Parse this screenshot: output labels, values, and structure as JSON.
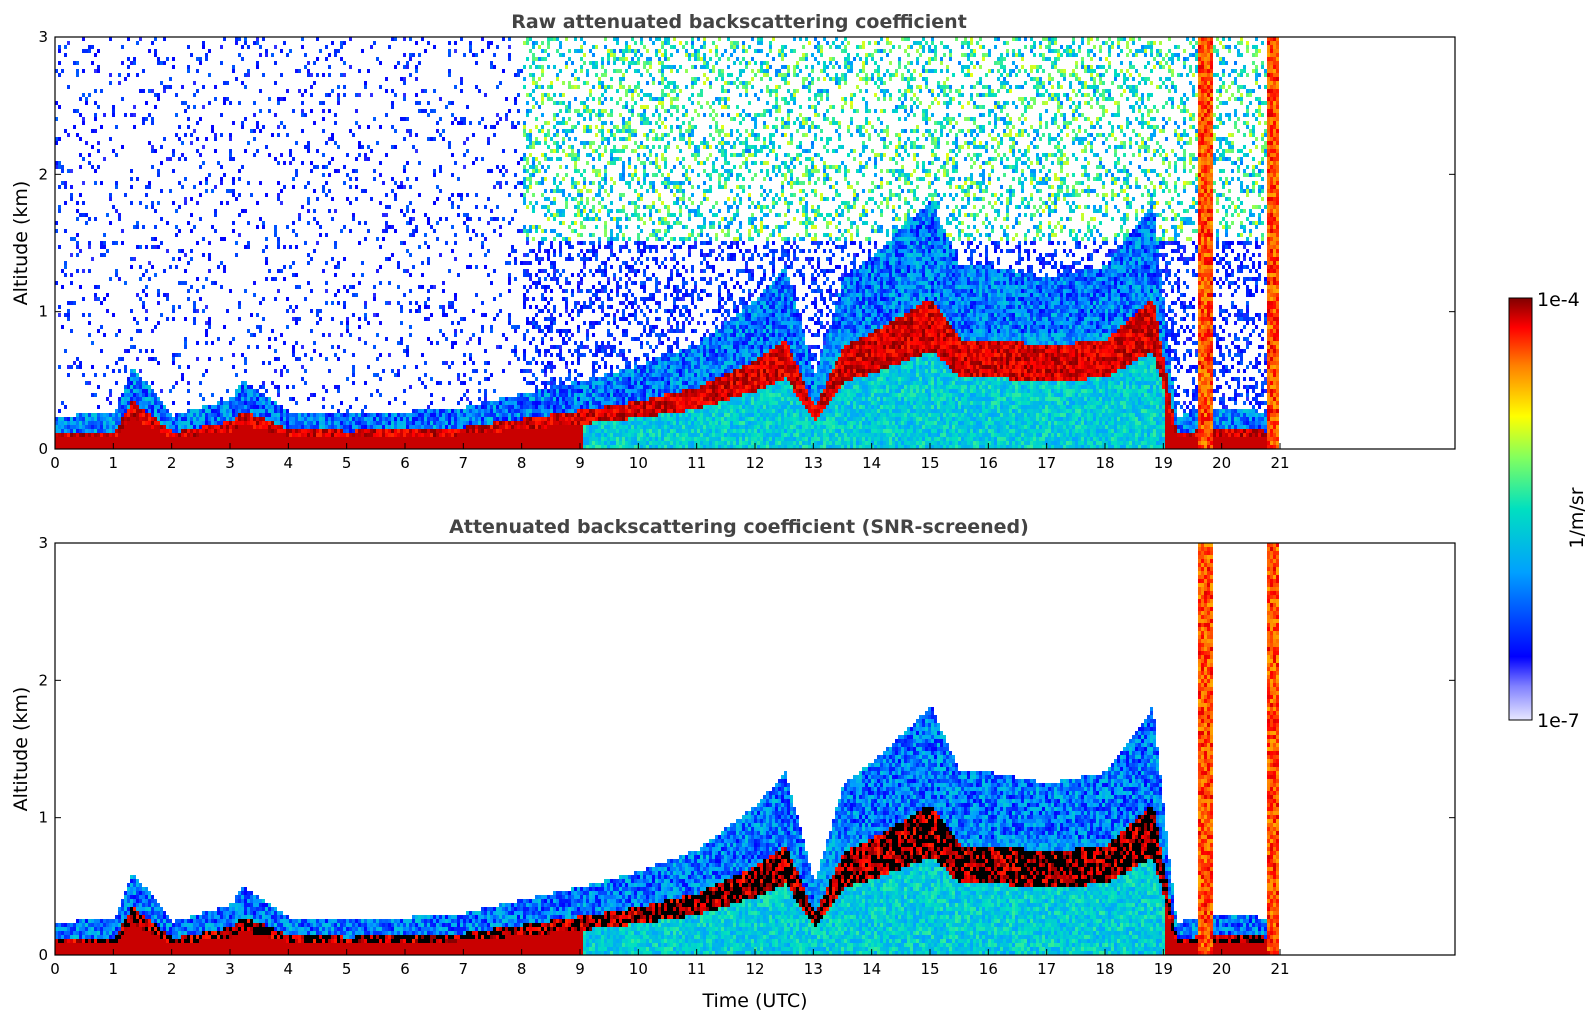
{
  "chart_data": [
    {
      "type": "heatmap",
      "title": "Raw attenuated backscattering coefficient",
      "xlabel": "",
      "ylabel": "Altitude (km)",
      "xlim": [
        0,
        24
      ],
      "ylim": [
        0,
        3
      ],
      "xticks": [
        "0",
        "1",
        "2",
        "3",
        "4",
        "5",
        "6",
        "7",
        "8",
        "9",
        "10",
        "11",
        "12",
        "13",
        "14",
        "15",
        "16",
        "17",
        "18",
        "19",
        "20",
        "21"
      ],
      "yticks": [
        "0",
        "1",
        "2",
        "3"
      ],
      "data_end_hour": 21,
      "layer_top_km": [
        [
          0,
          0.12
        ],
        [
          1,
          0.13
        ],
        [
          1.3,
          0.35
        ],
        [
          2,
          0.12
        ],
        [
          3,
          0.2
        ],
        [
          3.2,
          0.28
        ],
        [
          4,
          0.14
        ],
        [
          5,
          0.13
        ],
        [
          6,
          0.14
        ],
        [
          7,
          0.16
        ],
        [
          8,
          0.22
        ],
        [
          9,
          0.28
        ],
        [
          10,
          0.35
        ],
        [
          11,
          0.45
        ],
        [
          12,
          0.65
        ],
        [
          12.5,
          0.8
        ],
        [
          13,
          0.3
        ],
        [
          13.5,
          0.75
        ],
        [
          14,
          0.85
        ],
        [
          15,
          1.1
        ],
        [
          15.5,
          0.8
        ],
        [
          16,
          0.8
        ],
        [
          17,
          0.75
        ],
        [
          18,
          0.8
        ],
        [
          18.8,
          1.1
        ],
        [
          19.2,
          0.12
        ],
        [
          20,
          0.15
        ],
        [
          20.5,
          0.15
        ],
        [
          21,
          0.1
        ]
      ],
      "vertical_plumes_hour": [
        19.7,
        20.85
      ]
    },
    {
      "type": "heatmap",
      "title": "Attenuated backscattering coefficient (SNR-screened)",
      "xlabel": "Time (UTC)",
      "ylabel": "Altitude (km)",
      "xlim": [
        0,
        24
      ],
      "ylim": [
        0,
        3
      ],
      "xticks": [
        "0",
        "1",
        "2",
        "3",
        "4",
        "5",
        "6",
        "7",
        "8",
        "9",
        "10",
        "11",
        "12",
        "13",
        "14",
        "15",
        "16",
        "17",
        "18",
        "19",
        "20",
        "21"
      ],
      "yticks": [
        "0",
        "1",
        "2",
        "3"
      ],
      "data_end_hour": 21
    }
  ],
  "colorbar": {
    "max_label": "1e-4",
    "min_label": "1e-7",
    "unit_label": "1/m/sr",
    "scale": "log",
    "colormap": [
      "#e8e8ff",
      "#0000ff",
      "#00c0ff",
      "#40ff80",
      "#ffff00",
      "#ff8000",
      "#ff0000",
      "#800000"
    ]
  }
}
